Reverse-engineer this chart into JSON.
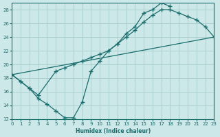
{
  "xlabel": "Humidex (Indice chaleur)",
  "bg_color": "#cce8e8",
  "grid_color": "#aacece",
  "line_color": "#1a6b6b",
  "xlim": [
    0,
    23
  ],
  "ylim": [
    12,
    29
  ],
  "xticks": [
    0,
    1,
    2,
    3,
    4,
    5,
    6,
    7,
    8,
    9,
    10,
    11,
    12,
    13,
    14,
    15,
    16,
    17,
    18,
    19,
    20,
    21,
    22,
    23
  ],
  "yticks": [
    12,
    14,
    16,
    18,
    20,
    22,
    24,
    26,
    28
  ],
  "line_min_x": [
    0,
    1,
    2,
    3,
    4,
    5,
    6,
    7,
    8,
    9,
    10,
    11,
    12,
    13,
    14,
    15,
    16,
    17,
    18
  ],
  "line_min_y": [
    18.5,
    17.5,
    16.5,
    15.0,
    14.2,
    13.2,
    12.2,
    12.2,
    14.5,
    19.0,
    20.5,
    22.0,
    23.0,
    24.5,
    25.5,
    27.5,
    28.0,
    29.0,
    28.5
  ],
  "line_max_x": [
    0,
    1,
    2,
    3,
    5,
    6,
    7,
    8,
    9,
    10,
    11,
    12,
    13,
    14,
    15,
    16,
    17,
    18,
    19,
    20,
    21,
    22,
    23
  ],
  "line_max_y": [
    18.5,
    17.5,
    16.5,
    15.5,
    19.0,
    19.5,
    20.0,
    20.5,
    21.0,
    21.5,
    22.0,
    23.0,
    24.0,
    25.0,
    26.2,
    27.2,
    28.0,
    28.0,
    27.5,
    27.0,
    26.5,
    25.5,
    24.0
  ],
  "line_trend_x": [
    0,
    23
  ],
  "line_trend_y": [
    18.5,
    24.0
  ]
}
